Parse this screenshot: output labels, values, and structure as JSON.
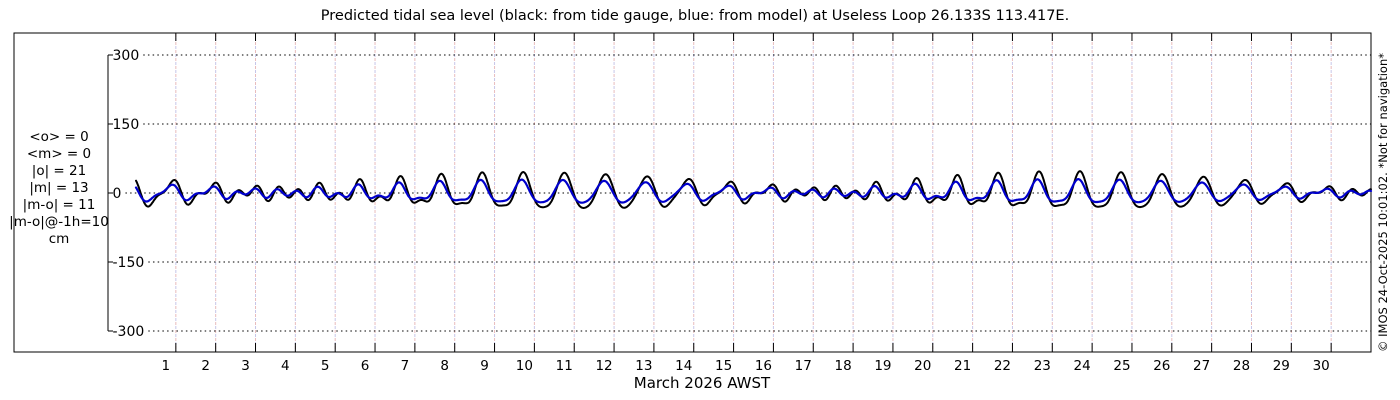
{
  "chart_data": {
    "type": "line",
    "title": "Predicted tidal sea level (black: from tide gauge, blue: from model) at Useless Loop 26.133S 113.417E.",
    "xlabel": "March 2026 AWST",
    "x_tick_labels": [
      "1",
      "2",
      "3",
      "4",
      "5",
      "6",
      "7",
      "8",
      "9",
      "10",
      "11",
      "12",
      "13",
      "14",
      "15",
      "16",
      "17",
      "18",
      "19",
      "20",
      "21",
      "22",
      "23",
      "24",
      "25",
      "26",
      "27",
      "28",
      "29",
      "30"
    ],
    "x_span_days": 31,
    "yticks": [
      300,
      150,
      0,
      -150,
      -300
    ],
    "ylim": [
      -300,
      300
    ],
    "y_units": "cm",
    "grid": {
      "h_dotted_color": "#000000",
      "day_line_colors": [
        "#e9bcbc",
        "#c6c6e9"
      ]
    },
    "stats_annotation": [
      "<o> = 0",
      "<m> = 0",
      "|o| = 21",
      "|m| = 13",
      "|m-o| = 11",
      "|m-o|@-1h=10",
      "cm"
    ],
    "watermark": "© IMOS 24-Oct-2025 10:01:02. *Not for navigation*",
    "series": [
      {
        "name": "tide gauge (observed)",
        "legend": "black: from tide gauge",
        "color": "#000000",
        "line_width": 2,
        "synthesis_harmonics": [
          {
            "constituent": "O1",
            "period_h": 25.8193,
            "amp_cm": 17.0,
            "phase_rad": 0.0
          },
          {
            "constituent": "K1",
            "period_h": 23.9345,
            "amp_cm": 21.0,
            "phase_rad": 1.454
          },
          {
            "constituent": "M2",
            "period_h": 12.4206,
            "amp_cm": 9.0,
            "phase_rad": 0.8
          },
          {
            "constituent": "S2",
            "period_h": 12.0,
            "amp_cm": 4.5,
            "phase_rad": -1.328
          }
        ]
      },
      {
        "name": "model",
        "legend": "blue: from model",
        "color": "#0000cc",
        "line_width": 2.2,
        "trough_soft_clip_cm": -22,
        "trough_soft_clip_factor": 0.4,
        "synthesis_harmonics": [
          {
            "constituent": "O1",
            "period_h": 25.8193,
            "amp_cm": 11.0,
            "phase_rad": 0.24
          },
          {
            "constituent": "K1",
            "period_h": 23.9345,
            "amp_cm": 13.5,
            "phase_rad": 1.71
          },
          {
            "constituent": "M2",
            "period_h": 12.4206,
            "amp_cm": 5.5,
            "phase_rad": 1.3
          },
          {
            "constituent": "S2",
            "period_h": 12.0,
            "amp_cm": 2.5,
            "phase_rad": -0.83
          }
        ]
      }
    ]
  }
}
